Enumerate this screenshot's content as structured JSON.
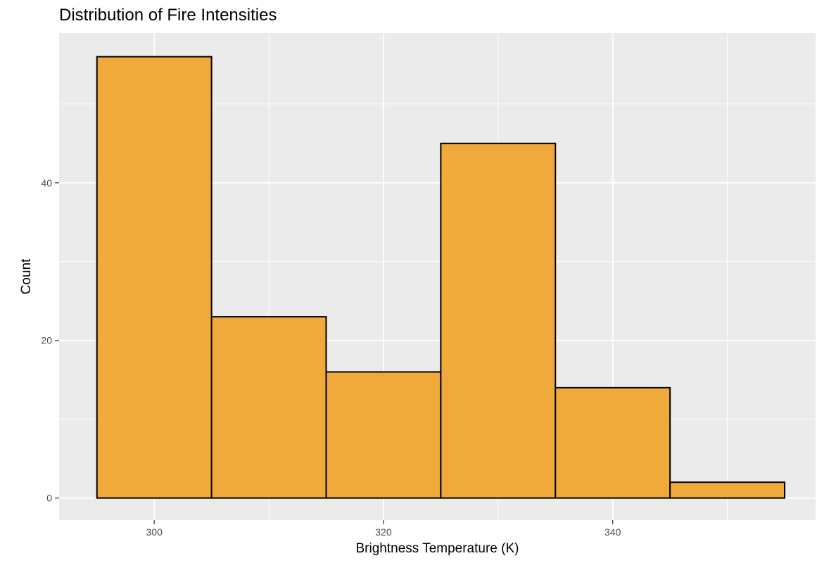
{
  "chart_data": {
    "type": "bar",
    "subtype": "histogram",
    "title": "Distribution of Fire Intensities",
    "xlabel": "Brightness Temperature (K)",
    "ylabel": "Count",
    "bins": [
      {
        "x0": 295,
        "x1": 305,
        "count": 56
      },
      {
        "x0": 305,
        "x1": 315,
        "count": 23
      },
      {
        "x0": 315,
        "x1": 325,
        "count": 16
      },
      {
        "x0": 325,
        "x1": 335,
        "count": 45
      },
      {
        "x0": 335,
        "x1": 345,
        "count": 14
      },
      {
        "x0": 345,
        "x1": 355,
        "count": 2
      }
    ],
    "xlim": [
      291.7,
      357.7
    ],
    "ylim": [
      -2.8,
      59
    ],
    "x_ticks": [
      300,
      320,
      340
    ],
    "y_ticks": [
      0,
      20,
      40
    ],
    "grid": true,
    "colors": {
      "panel_background": "#ebebeb",
      "grid": "#ffffff",
      "bar_fill": "#f0a93b",
      "bar_stroke": "#000000"
    }
  }
}
